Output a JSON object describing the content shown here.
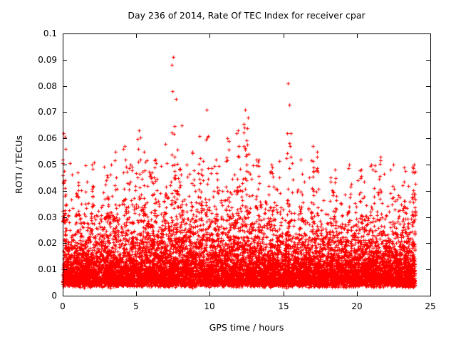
{
  "chart_data": {
    "type": "scatter",
    "title": "Day 236 of 2014, Rate Of TEC Index for receiver cpar",
    "xlabel": "GPS time / hours",
    "ylabel": "ROTI / TECUs",
    "xlim": [
      0,
      25
    ],
    "ylim": [
      0,
      0.1
    ],
    "xticks": [
      0,
      5,
      10,
      15,
      20,
      25
    ],
    "yticks": [
      0,
      0.01,
      0.02,
      0.03,
      0.04,
      0.05,
      0.06,
      0.07,
      0.08,
      0.09,
      0.1
    ],
    "xtick_labels": [
      "0",
      "5",
      "10",
      "15",
      "20",
      "25"
    ],
    "ytick_labels": [
      "0",
      "0.01",
      "0.02",
      "0.03",
      "0.04",
      "0.05",
      "0.06",
      "0.07",
      "0.08",
      "0.09",
      "0.1"
    ],
    "grid": false,
    "legend": "none",
    "marker": "plus",
    "marker_color": "#ff0000",
    "frame_color": "#000000",
    "series_name": "ROTI",
    "baseline_band": {
      "description": "dense band of per-epoch ROTI values covering the whole day",
      "n": 11000,
      "x_min": 0.0,
      "x_max": 23.95,
      "y_floor": 0.004,
      "exp_mean": 0.0075,
      "y_cap": 0.052,
      "seed": 1234
    },
    "spikes": [
      {
        "x": 0.05,
        "ymax": 0.062,
        "n": 25
      },
      {
        "x": 1.0,
        "ymax": 0.047,
        "n": 10
      },
      {
        "x": 2.0,
        "ymax": 0.05,
        "n": 12
      },
      {
        "x": 3.0,
        "ymax": 0.046,
        "n": 10
      },
      {
        "x": 3.6,
        "ymax": 0.055,
        "n": 8
      },
      {
        "x": 4.2,
        "ymax": 0.057,
        "n": 10
      },
      {
        "x": 4.6,
        "ymax": 0.05,
        "n": 8
      },
      {
        "x": 5.2,
        "ymax": 0.063,
        "n": 14
      },
      {
        "x": 5.5,
        "ymax": 0.055,
        "n": 10
      },
      {
        "x": 6.3,
        "ymax": 0.052,
        "n": 8
      },
      {
        "x": 7.0,
        "ymax": 0.058,
        "n": 10
      },
      {
        "x": 7.5,
        "ymax": 0.091,
        "n": 18
      },
      {
        "x": 7.7,
        "ymax": 0.075,
        "n": 10
      },
      {
        "x": 8.1,
        "ymax": 0.065,
        "n": 8
      },
      {
        "x": 8.8,
        "ymax": 0.055,
        "n": 8
      },
      {
        "x": 9.3,
        "ymax": 0.061,
        "n": 8
      },
      {
        "x": 9.8,
        "ymax": 0.071,
        "n": 10
      },
      {
        "x": 10.4,
        "ymax": 0.052,
        "n": 8
      },
      {
        "x": 11.2,
        "ymax": 0.06,
        "n": 10
      },
      {
        "x": 11.9,
        "ymax": 0.063,
        "n": 10
      },
      {
        "x": 12.4,
        "ymax": 0.071,
        "n": 14
      },
      {
        "x": 12.6,
        "ymax": 0.068,
        "n": 10
      },
      {
        "x": 13.3,
        "ymax": 0.052,
        "n": 8
      },
      {
        "x": 14.2,
        "ymax": 0.05,
        "n": 8
      },
      {
        "x": 15.3,
        "ymax": 0.081,
        "n": 6
      },
      {
        "x": 15.5,
        "ymax": 0.062,
        "n": 10
      },
      {
        "x": 16.2,
        "ymax": 0.052,
        "n": 8
      },
      {
        "x": 17.0,
        "ymax": 0.057,
        "n": 12
      },
      {
        "x": 17.3,
        "ymax": 0.055,
        "n": 8
      },
      {
        "x": 18.5,
        "ymax": 0.048,
        "n": 8
      },
      {
        "x": 19.5,
        "ymax": 0.05,
        "n": 8
      },
      {
        "x": 20.3,
        "ymax": 0.048,
        "n": 8
      },
      {
        "x": 21.0,
        "ymax": 0.05,
        "n": 8
      },
      {
        "x": 21.6,
        "ymax": 0.053,
        "n": 10
      },
      {
        "x": 22.5,
        "ymax": 0.05,
        "n": 8
      },
      {
        "x": 23.2,
        "ymax": 0.049,
        "n": 8
      },
      {
        "x": 23.9,
        "ymax": 0.05,
        "n": 20
      }
    ]
  }
}
